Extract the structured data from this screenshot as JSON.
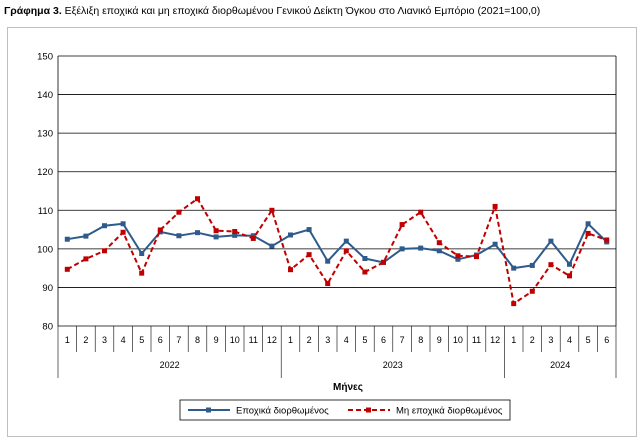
{
  "caption": {
    "label": "Γράφημα 3.",
    "text": "Εξέλιξη εποχικά και μη εποχικά διορθωμένου Γενικού Δείκτη Όγκου στο Λιανικό Εμπόριο (2021=100,0)"
  },
  "colors": {
    "seasonal": "#2f5a8c",
    "non_seasonal": "#c00000",
    "grid": "#000000"
  },
  "chart_data": {
    "type": "line",
    "title": "Εξέλιξη εποχικά και μη εποχικά διορθωμένου Γενικού Δείκτη Όγκου στο Λιανικό Εμπόριο (2021=100,0)",
    "xlabel": "Μήνες",
    "ylabel": "",
    "ylim": [
      80,
      150
    ],
    "yticks": [
      80,
      90,
      100,
      110,
      120,
      130,
      140,
      150
    ],
    "grid": true,
    "legend_position": "bottom",
    "categories": [
      "1",
      "2",
      "3",
      "4",
      "5",
      "6",
      "7",
      "8",
      "9",
      "10",
      "11",
      "12",
      "1",
      "2",
      "3",
      "4",
      "5",
      "6",
      "7",
      "8",
      "9",
      "10",
      "11",
      "12",
      "1",
      "2",
      "3",
      "4",
      "5",
      "6"
    ],
    "years": [
      {
        "label": "2022",
        "months": 12
      },
      {
        "label": "2023",
        "months": 12
      },
      {
        "label": "2024",
        "months": 6
      }
    ],
    "series": [
      {
        "name": "Εποχικά διορθωμένος",
        "style": "solid-square",
        "values": [
          102.5,
          103.3,
          106.0,
          106.5,
          98.8,
          104.4,
          103.4,
          104.2,
          103.1,
          103.5,
          103.4,
          100.7,
          103.6,
          105.0,
          96.8,
          102.0,
          97.5,
          96.5,
          100.0,
          100.2,
          99.5,
          97.3,
          98.4,
          101.2,
          95.0,
          95.7,
          102.0,
          96.0,
          106.5,
          101.8
        ]
      },
      {
        "name": "Μη εποχικά διορθωμένος",
        "style": "dashed-square",
        "values": [
          94.7,
          97.4,
          99.5,
          104.3,
          93.7,
          104.9,
          109.5,
          113.0,
          104.7,
          104.5,
          102.7,
          110.0,
          94.6,
          98.5,
          91.0,
          99.5,
          94.0,
          96.5,
          106.3,
          109.5,
          101.6,
          98.2,
          98.0,
          111.0,
          85.8,
          89.0,
          95.9,
          93.0,
          104.0,
          102.3
        ]
      }
    ]
  }
}
